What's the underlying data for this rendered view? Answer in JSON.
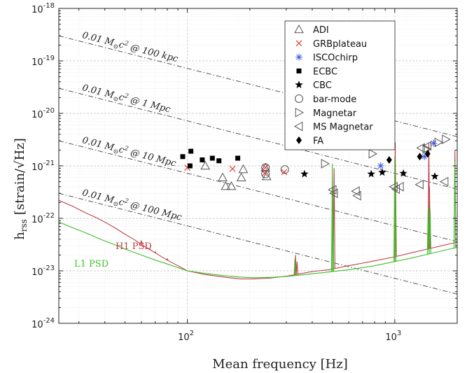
{
  "chart_data": {
    "type": "scatter",
    "xlabel": "Mean frequency [Hz]",
    "ylabel_main": "h",
    "ylabel_sub": "rss",
    "ylabel_units": "[strain/√Hz]",
    "x_scale": "log",
    "y_scale": "log",
    "xlim": [
      24,
      2000
    ],
    "ylim": [
      1e-24,
      1e-18
    ],
    "x_ticks": [
      {
        "value": 100,
        "base": "10",
        "exp": "2"
      },
      {
        "value": 1000,
        "base": "10",
        "exp": "3"
      }
    ],
    "y_ticks": [
      {
        "value": 1e-18,
        "base": "10",
        "exp": "-18"
      },
      {
        "value": 1e-19,
        "base": "10",
        "exp": "-19"
      },
      {
        "value": 1e-20,
        "base": "10",
        "exp": "-20"
      },
      {
        "value": 1e-21,
        "base": "10",
        "exp": "-21"
      },
      {
        "value": 1e-22,
        "base": "10",
        "exp": "-22"
      },
      {
        "value": 1e-23,
        "base": "10",
        "exp": "-23"
      },
      {
        "value": 1e-24,
        "base": "10",
        "exp": "-24"
      }
    ],
    "grid": true,
    "legend_position": "top-right",
    "series": [
      {
        "name": "ADI",
        "marker": "triangle-up",
        "color": "#555555",
        "points": [
          [
            122,
            1e-21
          ],
          [
            148,
            6e-22
          ],
          [
            153,
            4.1e-22
          ],
          [
            163,
            4.1e-22
          ],
          [
            182,
            6e-22
          ],
          [
            186,
            8.6e-22
          ],
          [
            238,
            9.2e-22
          ],
          [
            241,
            6.3e-22
          ]
        ]
      },
      {
        "name": "GRBplateau",
        "marker": "x",
        "color": "#e8413a",
        "points": [
          [
            100,
            9.2e-22
          ],
          [
            165,
            8.8e-22
          ],
          [
            236,
            7.2e-22
          ],
          [
            238,
            9.3e-22
          ],
          [
            293,
            7.6e-22
          ]
        ]
      },
      {
        "name": "ISCOchirp",
        "marker": "asterisk",
        "color": "#3a54e8",
        "points": [
          [
            855,
            1e-21
          ],
          [
            1390,
            1.5e-21
          ],
          [
            1540,
            2.7e-21
          ]
        ]
      },
      {
        "name": "ECBC",
        "marker": "square",
        "color": "#000000",
        "points": [
          [
            95,
            1.5e-21
          ],
          [
            103,
            1e-21
          ],
          [
            104,
            1.9e-21
          ],
          [
            118,
            1.3e-21
          ],
          [
            132,
            1.4e-21
          ],
          [
            142,
            1.25e-21
          ],
          [
            175,
            1.4e-21
          ]
        ]
      },
      {
        "name": "CBC",
        "marker": "star",
        "color": "#000000",
        "points": [
          [
            367,
            7e-22
          ],
          [
            770,
            7e-22
          ],
          [
            870,
            7.5e-22
          ],
          [
            1100,
            7.2e-22
          ],
          [
            1560,
            6.3e-22
          ]
        ]
      },
      {
        "name": "bar-mode",
        "marker": "circle",
        "color": "#555555",
        "points": [
          [
            238,
            9.3e-22
          ],
          [
            238,
            7e-22
          ],
          [
            295,
            8.5e-22
          ]
        ]
      },
      {
        "name": "Magnetar",
        "marker": "triangle-right",
        "color": "#555555",
        "points": [
          [
            460,
            1.1e-21
          ],
          [
            780,
            1.7e-21
          ],
          [
            1420,
            2.1e-21
          ],
          [
            1620,
            2.8e-21
          ],
          [
            1760,
            3.2e-21
          ]
        ]
      },
      {
        "name": "MS Magnetar",
        "marker": "triangle-left",
        "color": "#555555",
        "points": [
          [
            502,
            3.5e-22
          ],
          [
            510,
            3e-22
          ],
          [
            650,
            3.3e-22
          ],
          [
            660,
            2.7e-22
          ],
          [
            990,
            4e-22
          ],
          [
            1015,
            3.6e-22
          ],
          [
            1060,
            4e-22
          ],
          [
            1320,
            4.4e-22
          ],
          [
            1340,
            2.2e-21
          ],
          [
            1440,
            2.4e-21
          ],
          [
            1740,
            5e-22
          ]
        ]
      },
      {
        "name": "FA",
        "marker": "diamond",
        "color": "#000000",
        "points": [
          [
            940,
            1.3e-21
          ],
          [
            1320,
            1.5e-21
          ],
          [
            1440,
            1.7e-21
          ]
        ]
      }
    ],
    "energy_lines": [
      {
        "label_a": "0.01 M",
        "label_b": "c",
        "label_c": " @ 100 kpc",
        "h_at_x0": 3e-19
      },
      {
        "label_a": "0.01 M",
        "label_b": "c",
        "label_c": " @ 1 Mpc",
        "h_at_x0": 3e-20
      },
      {
        "label_a": "0.01 M",
        "label_b": "c",
        "label_c": " @ 10 Mpc",
        "h_at_x0": 3e-21
      },
      {
        "label_a": "0.01 M",
        "label_b": "c",
        "label_c": " @ 100 Mpc",
        "h_at_x0": 3e-22
      }
    ],
    "energy_line_x0": 24,
    "energy_line_slope": -1,
    "psd_curves": [
      {
        "name": "H1 PSD",
        "color": "#c0404a",
        "points": [
          [
            24,
            2.2e-22
          ],
          [
            28,
            1.7e-22
          ],
          [
            32,
            1.3e-22
          ],
          [
            36,
            1.05e-22
          ],
          [
            40,
            8.5e-23
          ],
          [
            45,
            6.5e-23
          ],
          [
            50,
            5e-23
          ],
          [
            55,
            4e-23
          ],
          [
            60,
            3.2e-23
          ],
          [
            70,
            2.2e-23
          ],
          [
            80,
            1.6e-23
          ],
          [
            90,
            1.25e-23
          ],
          [
            100,
            1e-23
          ],
          [
            120,
            8.6e-24
          ],
          [
            150,
            7.6e-24
          ],
          [
            180,
            7e-24
          ],
          [
            210,
            7e-24
          ],
          [
            250,
            7.3e-24
          ],
          [
            300,
            7.9e-24
          ],
          [
            350,
            8.8e-24
          ],
          [
            400,
            9.7e-24
          ],
          [
            480,
            1.05e-23
          ],
          [
            600,
            1.25e-23
          ],
          [
            700,
            1.4e-23
          ],
          [
            800,
            1.55e-23
          ],
          [
            1000,
            1.85e-23
          ],
          [
            1200,
            2.2e-23
          ],
          [
            1500,
            2.7e-23
          ],
          [
            1800,
            3.2e-23
          ],
          [
            2000,
            3.5e-23
          ]
        ],
        "spikes": [
          [
            60,
            3.8e-23
          ],
          [
            66,
            2.6e-23
          ],
          [
            70,
            2.3e-23
          ],
          [
            80,
            1.7e-23
          ],
          [
            332,
            2e-23
          ],
          [
            338,
            1.5e-23
          ],
          [
            510,
            9e-22
          ],
          [
            1005,
            2.8e-21
          ],
          [
            1008,
            6e-22
          ],
          [
            1460,
            2.8e-21
          ],
          [
            1470,
            4e-22
          ],
          [
            1950,
            2e-21
          ]
        ]
      },
      {
        "name": "L1 PSD",
        "color": "#3fbf2a",
        "points": [
          [
            24,
            8.5e-23
          ],
          [
            28,
            6.6e-23
          ],
          [
            32,
            5.4e-23
          ],
          [
            36,
            4.4e-23
          ],
          [
            40,
            3.7e-23
          ],
          [
            45,
            3.1e-23
          ],
          [
            50,
            2.6e-23
          ],
          [
            60,
            2e-23
          ],
          [
            70,
            1.6e-23
          ],
          [
            80,
            1.35e-23
          ],
          [
            90,
            1.15e-23
          ],
          [
            100,
            1e-23
          ],
          [
            120,
            9e-24
          ],
          [
            150,
            8.1e-24
          ],
          [
            180,
            7.6e-24
          ],
          [
            210,
            7.4e-24
          ],
          [
            250,
            7.5e-24
          ],
          [
            300,
            7.8e-24
          ],
          [
            350,
            8.3e-24
          ],
          [
            400,
            8.8e-24
          ],
          [
            480,
            9.5e-24
          ],
          [
            600,
            1.05e-23
          ],
          [
            700,
            1.15e-23
          ],
          [
            800,
            1.25e-23
          ],
          [
            1000,
            1.5e-23
          ],
          [
            1200,
            1.75e-23
          ],
          [
            1500,
            2.15e-23
          ],
          [
            1800,
            2.55e-23
          ],
          [
            2000,
            2.8e-23
          ]
        ],
        "spikes": [
          [
            330,
            1.7e-23
          ],
          [
            500,
            1.1e-21
          ],
          [
            503,
            4e-22
          ],
          [
            1000,
            1.5e-21
          ],
          [
            1004,
            5e-22
          ],
          [
            1450,
            1.8e-22
          ],
          [
            1480,
            1.5e-22
          ],
          [
            1950,
            1.2e-21
          ]
        ]
      }
    ],
    "psd_labels": [
      {
        "text": "H1 PSD",
        "color": "#c0404a"
      },
      {
        "text": "L1 PSD",
        "color": "#3fbf2a"
      }
    ]
  }
}
